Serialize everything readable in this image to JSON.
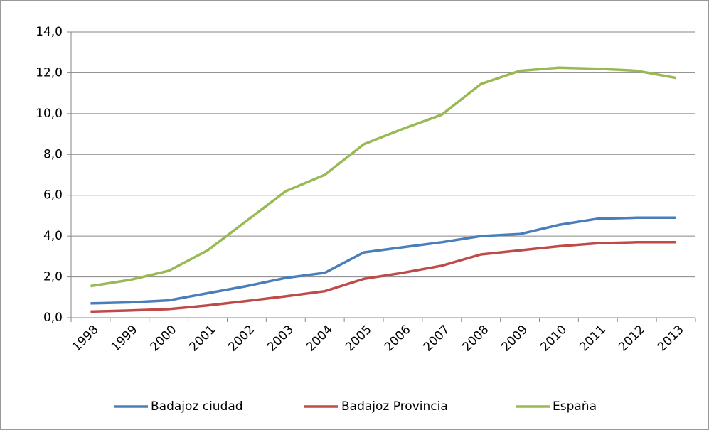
{
  "chart_data": {
    "type": "line",
    "categories": [
      "1998",
      "1999",
      "2000",
      "2001",
      "2002",
      "2003",
      "2004",
      "2005",
      "2006",
      "2007",
      "2008",
      "2009",
      "2010",
      "2011",
      "2012",
      "2013"
    ],
    "series": [
      {
        "name": "Badajoz ciudad",
        "color": "#4a7ebb",
        "values": [
          0.7,
          0.75,
          0.85,
          1.2,
          1.55,
          1.95,
          2.2,
          3.2,
          3.45,
          3.7,
          4.0,
          4.1,
          4.55,
          4.85,
          4.9,
          4.9
        ]
      },
      {
        "name": "Badajoz Provincia",
        "color": "#be4b48",
        "values": [
          0.3,
          0.35,
          0.42,
          0.6,
          0.82,
          1.05,
          1.3,
          1.9,
          2.2,
          2.55,
          3.1,
          3.3,
          3.5,
          3.65,
          3.7,
          3.7
        ]
      },
      {
        "name": "España",
        "color": "#98b954",
        "values": [
          1.55,
          1.85,
          2.3,
          3.3,
          4.75,
          6.2,
          7.0,
          8.5,
          9.25,
          9.95,
          11.45,
          12.1,
          12.25,
          12.2,
          12.1,
          11.75
        ]
      }
    ],
    "ylim": [
      0,
      14
    ],
    "yticks": [
      {
        "value": 0,
        "label": "0,0"
      },
      {
        "value": 2,
        "label": "2,0"
      },
      {
        "value": 4,
        "label": "4,0"
      },
      {
        "value": 6,
        "label": "6,0"
      },
      {
        "value": 8,
        "label": "8,0"
      },
      {
        "value": 10,
        "label": "10,0"
      },
      {
        "value": 12,
        "label": "12,0"
      },
      {
        "value": 14,
        "label": "14,0"
      }
    ],
    "grid": true,
    "legend": "bottom"
  }
}
